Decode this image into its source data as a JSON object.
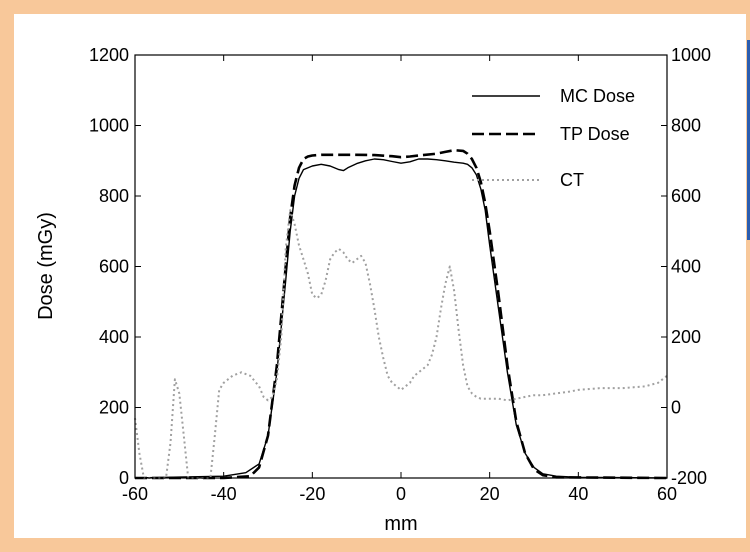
{
  "chart_data": {
    "type": "line",
    "xlabel": "mm",
    "ylabel": "Dose (mGy)",
    "xlim": [
      -60,
      60
    ],
    "ylim": [
      0,
      1200
    ],
    "y2lim": [
      -200,
      1000
    ],
    "x_ticks": [
      "-60",
      "-40",
      "-20",
      "0",
      "20",
      "40",
      "60"
    ],
    "y_ticks": [
      "0",
      "200",
      "400",
      "600",
      "800",
      "1000",
      "1200"
    ],
    "y2_ticks": [
      "-200",
      "0",
      "200",
      "400",
      "600",
      "800",
      "1000"
    ],
    "legend_position": "top-right",
    "grid": false,
    "series": [
      {
        "name": "MC Dose",
        "style": "solid",
        "axis": "left",
        "color": "#000000",
        "x": [
          -60,
          -40,
          -35,
          -32,
          -30,
          -28,
          -26,
          -25,
          -24,
          -23,
          -22,
          -20,
          -18,
          -16,
          -14,
          -13,
          -12,
          -10,
          -8,
          -6,
          -4,
          -2,
          0,
          2,
          4,
          6,
          8,
          10,
          12,
          14,
          15,
          16,
          17,
          18,
          19,
          20,
          22,
          24,
          26,
          28,
          30,
          32,
          35,
          40,
          60
        ],
        "y": [
          0,
          5,
          15,
          40,
          120,
          300,
          560,
          700,
          800,
          850,
          875,
          885,
          890,
          885,
          875,
          872,
          880,
          892,
          900,
          905,
          903,
          898,
          893,
          897,
          905,
          905,
          903,
          900,
          896,
          893,
          890,
          880,
          860,
          820,
          760,
          660,
          480,
          300,
          150,
          70,
          30,
          12,
          5,
          2,
          0
        ]
      },
      {
        "name": "TP Dose",
        "style": "dashed",
        "axis": "left",
        "color": "#000000",
        "x": [
          -60,
          -40,
          -34,
          -32,
          -30,
          -28,
          -26,
          -25,
          -24,
          -23,
          -22,
          -21,
          -20,
          -18,
          -14,
          -10,
          -6,
          -2,
          0,
          2,
          4,
          8,
          10,
          12,
          14,
          15,
          16,
          17,
          18,
          19,
          20,
          22,
          24,
          26,
          28,
          30,
          32,
          35,
          60
        ],
        "y": [
          0,
          0,
          5,
          30,
          120,
          320,
          600,
          740,
          830,
          880,
          905,
          912,
          915,
          917,
          917,
          917,
          916,
          913,
          910,
          912,
          915,
          920,
          925,
          930,
          928,
          920,
          905,
          880,
          840,
          780,
          700,
          520,
          320,
          160,
          70,
          25,
          8,
          2,
          0
        ]
      },
      {
        "name": "CT",
        "style": "dotted",
        "axis": "right",
        "color": "#a0a0a0",
        "x": [
          -60,
          -59,
          -58,
          -55,
          -53,
          -52,
          -51,
          -50,
          -49,
          -48,
          -46,
          -44,
          -43,
          -42,
          -41,
          -40,
          -38,
          -36,
          -34,
          -32,
          -31,
          -30,
          -29,
          -28,
          -27,
          -26,
          -25,
          -24,
          -23,
          -22,
          -21,
          -20,
          -19,
          -18,
          -17,
          -16,
          -15,
          -14,
          -13,
          -12,
          -11,
          -10,
          -9,
          -8,
          -7,
          -6,
          -5,
          -4,
          -3,
          -2,
          -1,
          0,
          1,
          2,
          3,
          4,
          5,
          6,
          7,
          8,
          9,
          10,
          11,
          12,
          13,
          14,
          15,
          16,
          17,
          18,
          20,
          22,
          24,
          26,
          28,
          30,
          32,
          35,
          38,
          40,
          45,
          50,
          55,
          58,
          60
        ],
        "y": [
          -30,
          -130,
          -200,
          -200,
          -200,
          -100,
          80,
          40,
          -80,
          -200,
          -200,
          -200,
          -200,
          -80,
          50,
          70,
          90,
          100,
          90,
          60,
          30,
          20,
          30,
          80,
          200,
          450,
          560,
          520,
          460,
          420,
          380,
          320,
          310,
          320,
          360,
          420,
          440,
          450,
          440,
          420,
          410,
          420,
          430,
          410,
          350,
          280,
          200,
          140,
          90,
          70,
          60,
          50,
          60,
          70,
          90,
          100,
          110,
          120,
          150,
          200,
          280,
          350,
          400,
          330,
          220,
          120,
          60,
          40,
          30,
          25,
          25,
          25,
          20,
          25,
          30,
          35,
          35,
          40,
          45,
          50,
          55,
          55,
          60,
          70,
          90
        ]
      }
    ]
  }
}
